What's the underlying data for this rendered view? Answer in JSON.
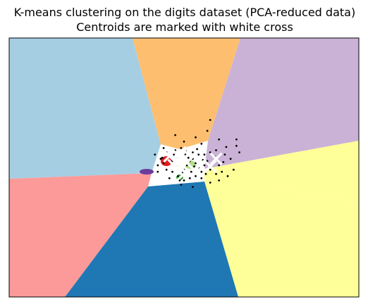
{
  "chart_data": {
    "type": "scatter",
    "title": "K-means clustering on the digits dataset (PCA-reduced data)",
    "subtitle": "Centroids are marked with white cross",
    "xlabel": "",
    "ylabel": "",
    "xlim": [
      -6,
      6
    ],
    "ylim": [
      -6,
      6
    ],
    "grid": false,
    "legend": "none",
    "region_colors": [
      "#a6cee3",
      "#fdbf6f",
      "#cab2d6",
      "#ffff99",
      "#1f78b4",
      "#fb9a99",
      "#6a3d9a",
      "#b2df8a",
      "#e31a1c",
      "#33a02c"
    ],
    "centroids": [
      {
        "x": -0.35,
        "y": 0.1
      },
      {
        "x": -0.25,
        "y": 0.32
      },
      {
        "x": 0.1,
        "y": 0.22
      },
      {
        "x": -0.5,
        "y": 0.52
      },
      {
        "x": -0.05,
        "y": -0.35
      },
      {
        "x": 0.55,
        "y": 0.12
      },
      {
        "x": 0.9,
        "y": 0.05
      },
      {
        "x": 1.1,
        "y": 0.4
      },
      {
        "x": 0.2,
        "y": 0.7
      },
      {
        "x": -0.15,
        "y": 0.05
      }
    ],
    "points": [
      {
        "x": -0.6,
        "y": 0.7
      },
      {
        "x": -0.5,
        "y": 0.5
      },
      {
        "x": -0.4,
        "y": 0.3
      },
      {
        "x": -0.3,
        "y": 0.2
      },
      {
        "x": -0.2,
        "y": 0.1
      },
      {
        "x": -0.1,
        "y": 0.0
      },
      {
        "x": 0.0,
        "y": -0.1
      },
      {
        "x": 0.1,
        "y": 0.1
      },
      {
        "x": 0.2,
        "y": 0.3
      },
      {
        "x": 0.3,
        "y": 0.4
      },
      {
        "x": 0.4,
        "y": 0.2
      },
      {
        "x": 0.5,
        "y": 0.0
      },
      {
        "x": 0.6,
        "y": -0.2
      },
      {
        "x": 0.7,
        "y": 0.1
      },
      {
        "x": 0.8,
        "y": 0.3
      },
      {
        "x": 0.9,
        "y": -0.1
      },
      {
        "x": 1.0,
        "y": 0.2
      },
      {
        "x": 1.1,
        "y": -0.3
      },
      {
        "x": 1.2,
        "y": 0.1
      },
      {
        "x": 1.3,
        "y": -0.2
      },
      {
        "x": -0.7,
        "y": 0.2
      },
      {
        "x": -0.8,
        "y": 0.4
      },
      {
        "x": -0.9,
        "y": 0.1
      },
      {
        "x": -0.6,
        "y": -0.1
      },
      {
        "x": -0.4,
        "y": -0.2
      },
      {
        "x": -0.2,
        "y": -0.4
      },
      {
        "x": 0.0,
        "y": -0.6
      },
      {
        "x": 0.2,
        "y": -0.5
      },
      {
        "x": 0.4,
        "y": -0.4
      },
      {
        "x": 0.6,
        "y": -0.5
      },
      {
        "x": -0.3,
        "y": 0.8
      },
      {
        "x": -0.1,
        "y": 0.9
      },
      {
        "x": 0.1,
        "y": 0.8
      },
      {
        "x": 0.3,
        "y": 0.7
      },
      {
        "x": 0.5,
        "y": 0.6
      },
      {
        "x": 0.7,
        "y": 0.6
      },
      {
        "x": 0.9,
        "y": 0.7
      },
      {
        "x": 1.1,
        "y": 0.8
      },
      {
        "x": 1.4,
        "y": 0.6
      },
      {
        "x": 1.6,
        "y": 0.4
      },
      {
        "x": 1.8,
        "y": 1.0
      },
      {
        "x": 1.7,
        "y": -0.1
      },
      {
        "x": 1.5,
        "y": -0.4
      },
      {
        "x": 1.2,
        "y": -0.6
      },
      {
        "x": 0.9,
        "y": -0.7
      },
      {
        "x": 0.3,
        "y": -0.9
      },
      {
        "x": -0.1,
        "y": -0.8
      },
      {
        "x": -0.5,
        "y": -0.5
      },
      {
        "x": -0.9,
        "y": -0.2
      },
      {
        "x": -1.0,
        "y": 0.6
      },
      {
        "x": -0.7,
        "y": 0.9
      },
      {
        "x": 0.0,
        "y": 1.2
      },
      {
        "x": 0.6,
        "y": 1.1
      },
      {
        "x": 1.2,
        "y": 1.3
      },
      {
        "x": 1.8,
        "y": 1.3
      },
      {
        "x": 1.9,
        "y": 0.7
      },
      {
        "x": 0.8,
        "y": 1.7
      },
      {
        "x": 0.9,
        "y": 2.2
      },
      {
        "x": -0.3,
        "y": 1.5
      },
      {
        "x": 0.4,
        "y": 1.4
      },
      {
        "x": -0.2,
        "y": 0.4
      },
      {
        "x": 0.15,
        "y": 0.45
      },
      {
        "x": -0.45,
        "y": -0.05
      },
      {
        "x": 0.35,
        "y": 0.05
      },
      {
        "x": 0.65,
        "y": 0.35
      },
      {
        "x": -0.05,
        "y": -0.25
      },
      {
        "x": 0.25,
        "y": -0.2
      },
      {
        "x": -0.35,
        "y": 0.6
      },
      {
        "x": 0.75,
        "y": -0.3
      },
      {
        "x": 1.05,
        "y": 0.5
      },
      {
        "x": 1.35,
        "y": 0.25
      },
      {
        "x": -0.75,
        "y": 0.45
      },
      {
        "x": 0.05,
        "y": 0.6
      },
      {
        "x": -0.15,
        "y": -0.6
      },
      {
        "x": 0.45,
        "y": 0.85
      },
      {
        "x": 1.45,
        "y": 0.95
      }
    ]
  }
}
